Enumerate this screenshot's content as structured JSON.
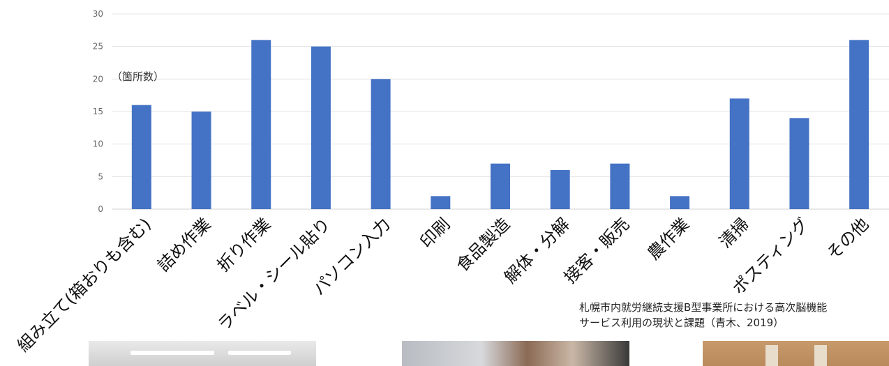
{
  "chart_data": {
    "type": "bar",
    "categories": [
      "組み立て(箱おりも含む)",
      "詰め作業",
      "折り作業",
      "ラベル・シール貼り",
      "パソコン入力",
      "印刷",
      "食品製造",
      "解体・分解",
      "接客・販売",
      "農作業",
      "清掃",
      "ポスティング",
      "その他"
    ],
    "values": [
      16,
      15,
      26,
      25,
      20,
      2,
      7,
      6,
      7,
      2,
      17,
      14,
      26
    ],
    "ylim": [
      0,
      30
    ],
    "yticks": [
      0,
      5,
      10,
      15,
      20,
      25,
      30
    ],
    "grid": true,
    "bar_color": "#4472c4",
    "unit_label": "（箇所数）"
  },
  "caption": {
    "line1": "札幌市内就労継続支援B型事業所における高次脳機能",
    "line2": "サービス利用の現状と課題（青木、2019）"
  }
}
